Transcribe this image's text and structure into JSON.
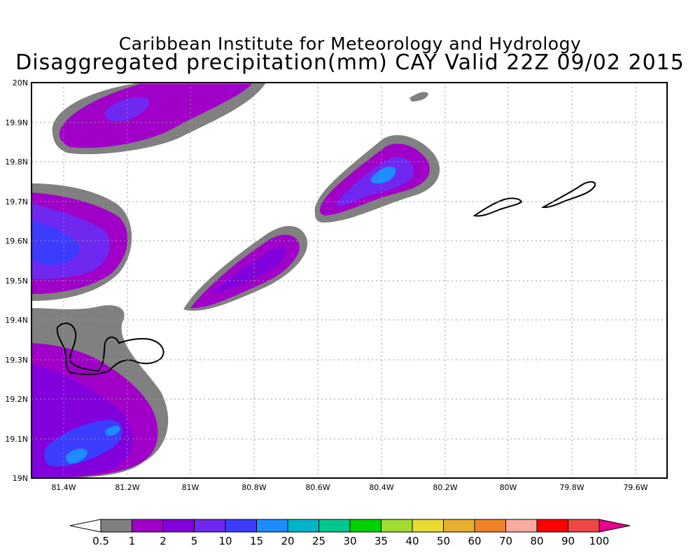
{
  "header": {
    "institution": "Caribbean Institute for Meteorology and Hydrology",
    "product": "Disaggregated precipitation(mm) CAY Valid 22Z 09/02 2015"
  },
  "map": {
    "lon_range": [
      -81.5,
      -79.5
    ],
    "lat_range": [
      19.0,
      20.0
    ],
    "lon_ticks": [
      "81.4W",
      "81.2W",
      "81W",
      "80.8W",
      "80.6W",
      "80.4W",
      "80.2W",
      "80W",
      "79.8W",
      "79.6W"
    ],
    "lat_ticks": [
      "19N",
      "19.1N",
      "19.2N",
      "19.3N",
      "19.4N",
      "19.5N",
      "19.6N",
      "19.7N",
      "19.8N",
      "19.9N",
      "20N"
    ],
    "grid": "dotted",
    "features": [
      "Grand Cayman",
      "Little Cayman",
      "Cayman Brac"
    ]
  },
  "colorbar": {
    "labels": [
      "0.5",
      "1",
      "2",
      "5",
      "10",
      "15",
      "20",
      "25",
      "30",
      "35",
      "40",
      "50",
      "60",
      "70",
      "80",
      "90",
      "100"
    ],
    "colors": [
      "#ffffff",
      "#808080",
      "#a000c8",
      "#8200dc",
      "#6e28f0",
      "#3c3cff",
      "#1e8cff",
      "#00b4c8",
      "#00c88c",
      "#00d200",
      "#a0dc32",
      "#e6dc32",
      "#e6af2d",
      "#f08228",
      "#faaaa0",
      "#ff0000",
      "#f04646",
      "#e6008c"
    ]
  }
}
